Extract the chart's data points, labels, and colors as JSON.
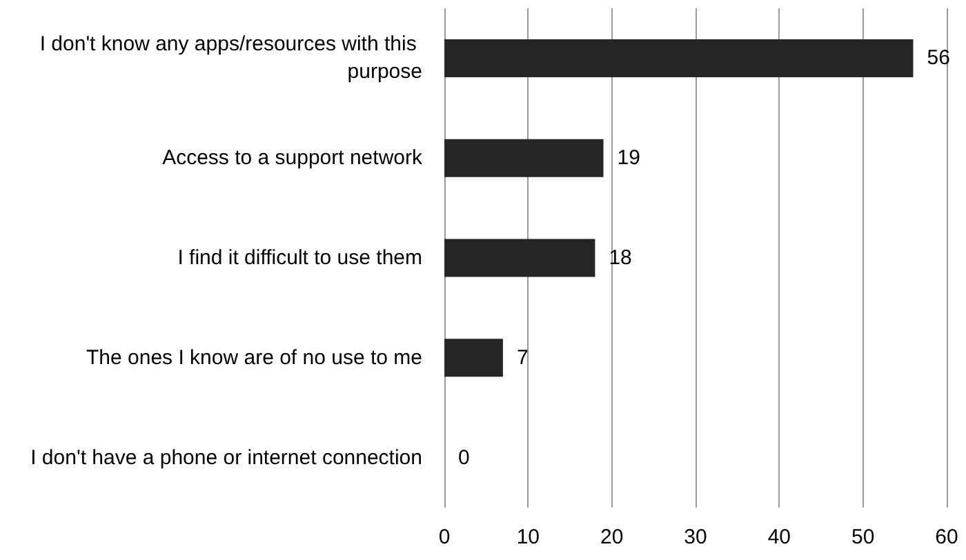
{
  "chart_data": {
    "type": "bar",
    "orientation": "horizontal",
    "categories": [
      "I don't know any apps/resources with this purpose",
      "Access to a support network",
      "I find it difficult to use them",
      "The ones I know are of no use to me",
      "I don't have a phone or internet connection"
    ],
    "values": [
      56,
      19,
      18,
      7,
      0
    ],
    "color": "#262626",
    "data_labels": true,
    "xlim": [
      0,
      60
    ],
    "xticks": [
      0,
      10,
      20,
      30,
      40,
      50,
      60
    ],
    "grid": "x"
  }
}
